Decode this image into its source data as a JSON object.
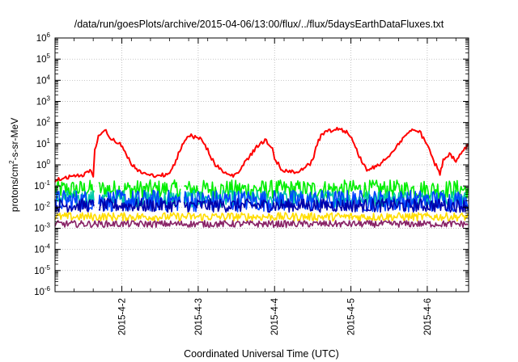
{
  "chart_data": {
    "type": "line",
    "title": "/data/run/goesPlots/archive/2015-04-06/13:00/flux/../flux/5daysEarthDataFluxes.txt",
    "xlabel": "Coordinated Universal Time (UTC)",
    "ylabel_parts": {
      "base": "protons/cm",
      "sup": "2",
      "rest": "-s-sr-MeV"
    },
    "y_scale": "log",
    "ylim": [
      1e-06,
      1000000.0
    ],
    "y_ticks": [
      {
        "exp": -6,
        "base": "10",
        "sup": "-6"
      },
      {
        "exp": -5,
        "base": "10",
        "sup": "-5"
      },
      {
        "exp": -4,
        "base": "10",
        "sup": "-4"
      },
      {
        "exp": -3,
        "base": "10",
        "sup": "-3"
      },
      {
        "exp": -2,
        "base": "10",
        "sup": "-2"
      },
      {
        "exp": -1,
        "base": "10",
        "sup": "-1"
      },
      {
        "exp": 0,
        "base": "10",
        "sup": "0"
      },
      {
        "exp": 1,
        "base": "10",
        "sup": "1"
      },
      {
        "exp": 2,
        "base": "10",
        "sup": "2"
      },
      {
        "exp": 3,
        "base": "10",
        "sup": "3"
      },
      {
        "exp": 4,
        "base": "10",
        "sup": "4"
      },
      {
        "exp": 5,
        "base": "10",
        "sup": "5"
      },
      {
        "exp": 6,
        "base": "10",
        "sup": "6"
      }
    ],
    "xlim": [
      "2015-04-01T03:00",
      "2015-04-06T13:00"
    ],
    "x_ticks": [
      {
        "t": "2015-04-02T00:00",
        "label": "2015-4-2"
      },
      {
        "t": "2015-04-03T00:00",
        "label": "2015-4-3"
      },
      {
        "t": "2015-04-04T00:00",
        "label": "2015-4-4"
      },
      {
        "t": "2015-04-05T00:00",
        "label": "2015-4-5"
      },
      {
        "t": "2015-04-06T00:00",
        "label": "2015-4-6"
      }
    ],
    "grid": true,
    "legend": "none",
    "series": [
      {
        "color": "#ff0000",
        "points": [
          [
            "2015-04-01T03:00",
            0.18
          ],
          [
            "2015-04-01T06:00",
            0.25
          ],
          [
            "2015-04-01T09:00",
            0.28
          ],
          [
            "2015-04-01T12:00",
            0.35
          ],
          [
            "2015-04-01T14:00",
            0.6
          ],
          [
            "2015-04-01T15:00",
            0.28
          ],
          [
            "2015-04-01T15:30",
            6
          ],
          [
            "2015-04-01T17:00",
            30
          ],
          [
            "2015-04-01T19:00",
            40
          ],
          [
            "2015-04-01T21:00",
            15
          ],
          [
            "2015-04-01T23:00",
            12
          ],
          [
            "2015-04-02T01:00",
            4
          ],
          [
            "2015-04-02T03:00",
            1.2
          ],
          [
            "2015-04-02T05:00",
            0.5
          ],
          [
            "2015-04-02T08:00",
            0.35
          ],
          [
            "2015-04-02T12:00",
            0.3
          ],
          [
            "2015-04-02T15:00",
            0.4
          ],
          [
            "2015-04-02T17:00",
            1.5
          ],
          [
            "2015-04-02T19:00",
            10
          ],
          [
            "2015-04-02T21:00",
            25
          ],
          [
            "2015-04-02T23:00",
            20
          ],
          [
            "2015-04-03T01:00",
            18
          ],
          [
            "2015-04-03T03:00",
            5
          ],
          [
            "2015-04-03T05:00",
            1.2
          ],
          [
            "2015-04-03T07:00",
            0.6
          ],
          [
            "2015-04-03T09:00",
            0.35
          ],
          [
            "2015-04-03T11:00",
            0.3
          ],
          [
            "2015-04-03T13:00",
            0.5
          ],
          [
            "2015-04-03T15:00",
            1.5
          ],
          [
            "2015-04-03T18:00",
            6
          ],
          [
            "2015-04-03T21:00",
            15
          ],
          [
            "2015-04-03T23:00",
            8
          ],
          [
            "2015-04-04T00:00",
            2
          ],
          [
            "2015-04-04T02:00",
            0.7
          ],
          [
            "2015-04-04T04:00",
            0.45
          ],
          [
            "2015-04-04T07:00",
            0.5
          ],
          [
            "2015-04-04T10:00",
            0.8
          ],
          [
            "2015-04-04T12:00",
            1.5
          ],
          [
            "2015-04-04T13:00",
            8
          ],
          [
            "2015-04-04T15:00",
            30
          ],
          [
            "2015-04-04T17:00",
            40
          ],
          [
            "2015-04-04T20:00",
            55
          ],
          [
            "2015-04-04T23:00",
            35
          ],
          [
            "2015-04-05T01:00",
            10
          ],
          [
            "2015-04-05T03:00",
            2
          ],
          [
            "2015-04-05T05:00",
            0.6
          ],
          [
            "2015-04-05T08:00",
            0.8
          ],
          [
            "2015-04-05T11:00",
            2
          ],
          [
            "2015-04-05T14:00",
            6
          ],
          [
            "2015-04-05T17:00",
            25
          ],
          [
            "2015-04-05T20:00",
            50
          ],
          [
            "2015-04-05T22:00",
            30
          ],
          [
            "2015-04-06T00:00",
            8
          ],
          [
            "2015-04-06T02:00",
            1.5
          ],
          [
            "2015-04-06T04:00",
            0.4
          ],
          [
            "2015-04-06T05:00",
            1.5
          ],
          [
            "2015-04-06T07:00",
            3
          ],
          [
            "2015-04-06T09:00",
            1.5
          ],
          [
            "2015-04-06T11:00",
            4
          ],
          [
            "2015-04-06T13:00",
            9
          ]
        ]
      },
      {
        "color": "#00ee00",
        "level": 0.07,
        "spread": 0.55,
        "gaps": [
          "2015-04-01T16:00",
          "2015-04-02T19:00"
        ]
      },
      {
        "color": "#00c8aa",
        "level": 0.025,
        "spread": 0.5,
        "gaps": [
          "2015-04-01T16:00",
          "2015-04-02T19:00"
        ]
      },
      {
        "color": "#0044ff",
        "level": 0.02,
        "spread": 0.65,
        "gaps": [
          "2015-04-01T16:00",
          "2015-04-02T19:00"
        ]
      },
      {
        "color": "#0000aa",
        "level": 0.012,
        "spread": 0.4,
        "gaps": [
          "2015-04-01T16:00",
          "2015-04-02T19:00"
        ]
      },
      {
        "color": "#ffdd00",
        "level": 0.0035,
        "spread": 0.25,
        "gaps": []
      },
      {
        "color": "#882266",
        "level": 0.0016,
        "spread": 0.2,
        "gaps": []
      }
    ]
  }
}
